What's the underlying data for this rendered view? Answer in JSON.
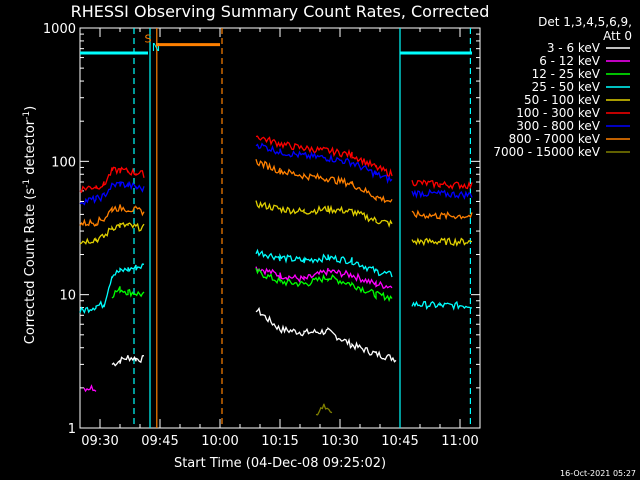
{
  "chart_data": {
    "type": "line",
    "title": "RHESSI Observing Summary Count Rates, Corrected",
    "xlabel": "Start Time (04-Dec-08 09:25:02)",
    "ylabel_main": "Corrected Count Rate (s",
    "ylabel_sup1": "-1",
    "ylabel_mid": " detector",
    "ylabel_sup2": "-1",
    "ylabel_end": ")",
    "y_scale": "log",
    "ylim": [
      1,
      1000
    ],
    "xlim_minutes_after_0925": [
      0,
      100
    ],
    "x_ticks": [
      {
        "label": "09:30",
        "minute": 5
      },
      {
        "label": "09:45",
        "minute": 20
      },
      {
        "label": "10:00",
        "minute": 35
      },
      {
        "label": "10:15",
        "minute": 50
      },
      {
        "label": "10:30",
        "minute": 65
      },
      {
        "label": "10:45",
        "minute": 80
      },
      {
        "label": "11:00",
        "minute": 95
      }
    ],
    "y_tick_labels": [
      {
        "label": "1",
        "value": 1
      },
      {
        "label": "10",
        "value": 10
      },
      {
        "label": "100",
        "value": 100
      },
      {
        "label": "1000",
        "value": 1000
      }
    ],
    "legend_header": [
      "Det 1,3,4,5,6,9,",
      "Att 0"
    ],
    "legend_position": "right",
    "series": [
      {
        "name": "3 - 6 keV",
        "color": "#ffffff",
        "segments": [
          [
            [
              8,
              3.0
            ],
            [
              10,
              3.2
            ],
            [
              12,
              3.4
            ],
            [
              14,
              3.3
            ],
            [
              16,
              3.3
            ]
          ],
          [
            [
              44,
              7.8
            ],
            [
              50,
              5.5
            ],
            [
              56,
              5.2
            ],
            [
              62,
              5.3
            ],
            [
              68,
              4.2
            ],
            [
              74,
              3.6
            ],
            [
              79,
              3.3
            ]
          ]
        ]
      },
      {
        "name": "6 - 12 keV",
        "color": "#ff00ff",
        "segments": [
          [
            [
              1,
              2.0
            ],
            [
              4,
              2.0
            ]
          ],
          [
            [
              44,
              16
            ],
            [
              50,
              14
            ],
            [
              56,
              13
            ],
            [
              62,
              15
            ],
            [
              68,
              14
            ],
            [
              74,
              12
            ],
            [
              78,
              11.5
            ]
          ]
        ]
      },
      {
        "name": "12 - 25 keV",
        "color": "#00ff00",
        "segments": [
          [
            [
              8,
              10
            ],
            [
              10,
              11
            ],
            [
              12,
              10.5
            ],
            [
              16,
              10
            ]
          ],
          [
            [
              44,
              15
            ],
            [
              50,
              12.5
            ],
            [
              56,
              12
            ],
            [
              62,
              13.5
            ],
            [
              68,
              12
            ],
            [
              74,
              10
            ],
            [
              78,
              9.5
            ]
          ]
        ]
      },
      {
        "name": "25 - 50 keV",
        "color": "#00ffff",
        "segments": [
          [
            [
              0,
              7.5
            ],
            [
              4,
              8.2
            ],
            [
              6,
              8.5
            ],
            [
              8,
              14
            ],
            [
              10,
              15
            ],
            [
              12,
              15.5
            ],
            [
              14,
              16
            ],
            [
              16,
              16.5
            ]
          ],
          [
            [
              44,
              21
            ],
            [
              50,
              19
            ],
            [
              56,
              18
            ],
            [
              62,
              19
            ],
            [
              68,
              18
            ],
            [
              74,
              15
            ],
            [
              78,
              14
            ]
          ],
          [
            [
              83,
              8.5
            ],
            [
              90,
              8.3
            ],
            [
              98,
              8.3
            ]
          ]
        ]
      },
      {
        "name": "50 - 100 keV",
        "color": "#e0d000",
        "segments": [
          [
            [
              0,
              25
            ],
            [
              4,
              26
            ],
            [
              6,
              27
            ],
            [
              8,
              32
            ],
            [
              10,
              33
            ],
            [
              12,
              33
            ],
            [
              14,
              32
            ],
            [
              16,
              32
            ]
          ],
          [
            [
              44,
              48
            ],
            [
              50,
              44
            ],
            [
              56,
              42
            ],
            [
              62,
              44
            ],
            [
              68,
              42
            ],
            [
              74,
              36
            ],
            [
              78,
              34
            ]
          ],
          [
            [
              83,
              25
            ],
            [
              90,
              25
            ],
            [
              98,
              25
            ]
          ]
        ]
      },
      {
        "name": "100 - 300 keV",
        "color": "#ff0000",
        "segments": [
          [
            [
              0,
              62
            ],
            [
              4,
              65
            ],
            [
              6,
              67
            ],
            [
              8,
              85
            ],
            [
              10,
              86
            ],
            [
              12,
              84
            ],
            [
              14,
              82
            ],
            [
              16,
              80
            ]
          ],
          [
            [
              44,
              155
            ],
            [
              50,
              135
            ],
            [
              56,
              125
            ],
            [
              62,
              120
            ],
            [
              68,
              112
            ],
            [
              74,
              90
            ],
            [
              78,
              80
            ]
          ],
          [
            [
              83,
              70
            ],
            [
              90,
              67
            ],
            [
              98,
              66
            ]
          ]
        ]
      },
      {
        "name": "300 - 800 keV",
        "color": "#0000ff",
        "segments": [
          [
            [
              0,
              50
            ],
            [
              4,
              52
            ],
            [
              6,
              55
            ],
            [
              8,
              66
            ],
            [
              10,
              68
            ],
            [
              12,
              66
            ],
            [
              14,
              64
            ],
            [
              16,
              62
            ]
          ],
          [
            [
              44,
              135
            ],
            [
              50,
              118
            ],
            [
              56,
              110
            ],
            [
              62,
              106
            ],
            [
              68,
              98
            ],
            [
              74,
              80
            ],
            [
              78,
              72
            ]
          ],
          [
            [
              83,
              58
            ],
            [
              90,
              57
            ],
            [
              98,
              56
            ]
          ]
        ]
      },
      {
        "name": "800 - 7000 keV",
        "color": "#ff8000",
        "segments": [
          [
            [
              0,
              34
            ],
            [
              4,
              35
            ],
            [
              6,
              37
            ],
            [
              8,
              44
            ],
            [
              10,
              45
            ],
            [
              12,
              44
            ],
            [
              14,
              43
            ],
            [
              16,
              42
            ]
          ],
          [
            [
              44,
              100
            ],
            [
              50,
              85
            ],
            [
              56,
              78
            ],
            [
              62,
              74
            ],
            [
              68,
              68
            ],
            [
              74,
              54
            ],
            [
              78,
              50
            ]
          ],
          [
            [
              83,
              40
            ],
            [
              90,
              39
            ],
            [
              98,
              39
            ]
          ]
        ]
      },
      {
        "name": "7000 - 15000 keV",
        "color": "#808000",
        "segments": [
          [
            [
              59,
              1.2
            ],
            [
              61,
              1.5
            ],
            [
              63,
              1.3
            ]
          ]
        ]
      }
    ],
    "flags": [
      {
        "label": "N",
        "color": "#00ffff",
        "level": 650,
        "segments": [
          [
            0,
            17
          ],
          [
            80,
            98
          ]
        ]
      },
      {
        "label": "S",
        "color": "#ff8000",
        "level": 750,
        "segments": [
          [
            19,
            35
          ]
        ]
      }
    ],
    "vertical_lines": [
      {
        "minute": 13.5,
        "color": "#00ffff",
        "style": "dashed"
      },
      {
        "minute": 17.5,
        "color": "#00ffff",
        "style": "solid"
      },
      {
        "minute": 19.2,
        "color": "#ff8000",
        "style": "solid"
      },
      {
        "minute": 35.5,
        "color": "#ff8000",
        "style": "dashed"
      },
      {
        "minute": 80.0,
        "color": "#00ffff",
        "style": "solid"
      },
      {
        "minute": 97.6,
        "color": "#00ffff",
        "style": "dashed"
      }
    ],
    "footer_date": "16-Oct-2021 05:27",
    "grid": false
  }
}
